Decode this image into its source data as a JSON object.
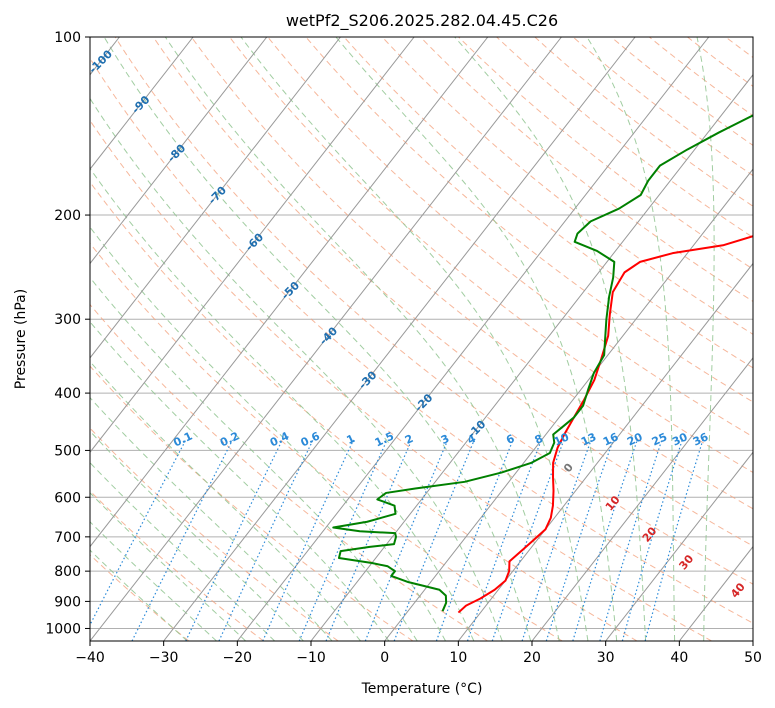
{
  "chart_data": {
    "type": "line",
    "title": "wetPf2_S206.2025.282.04.45.C26",
    "xlabel": "Temperature (°C)",
    "ylabel": "Pressure (hPa)",
    "xlim": [
      -40,
      50
    ],
    "ylim": [
      1050,
      100
    ],
    "y_scale": "log",
    "x_ticks": [
      -40,
      -30,
      -20,
      -10,
      0,
      10,
      20,
      30,
      40,
      50
    ],
    "y_ticks": [
      100,
      200,
      300,
      400,
      500,
      600,
      700,
      800,
      900,
      1000
    ],
    "grid": true,
    "series": [
      {
        "color": "#ff0000",
        "points": [
          [
            7.0,
            940
          ],
          [
            7.3,
            915
          ],
          [
            8.5,
            890
          ],
          [
            9.5,
            860
          ],
          [
            10.0,
            830
          ],
          [
            9.5,
            800
          ],
          [
            8.5,
            770
          ],
          [
            9.0,
            740
          ],
          [
            9.5,
            710
          ],
          [
            10.0,
            680
          ],
          [
            9.5,
            650
          ],
          [
            8.5,
            620
          ],
          [
            7.0,
            585
          ],
          [
            5.5,
            555
          ],
          [
            4.0,
            525
          ],
          [
            3.0,
            495
          ],
          [
            2.5,
            470
          ],
          [
            2.0,
            440
          ],
          [
            1.5,
            410
          ],
          [
            0.8,
            380
          ],
          [
            -0.5,
            350
          ],
          [
            -2.0,
            320
          ],
          [
            -4.0,
            295
          ],
          [
            -6.0,
            270
          ],
          [
            -6.5,
            250
          ],
          [
            -5.5,
            240
          ],
          [
            -2.0,
            232
          ],
          [
            4.0,
            225
          ],
          [
            8.0,
            215
          ],
          [
            11.0,
            200
          ],
          [
            15.0,
            185
          ],
          [
            19.0,
            170
          ],
          [
            22.0,
            155
          ],
          [
            24.0,
            145
          ],
          [
            26.0,
            135
          ],
          [
            28.0,
            125
          ],
          [
            30.0,
            113
          ],
          [
            32.0,
            105
          ],
          [
            33.0,
            100
          ]
        ]
      },
      {
        "color": "#008000",
        "points": [
          [
            4.7,
            935
          ],
          [
            4.3,
            905
          ],
          [
            3.5,
            880
          ],
          [
            2.0,
            860
          ],
          [
            -3.0,
            835
          ],
          [
            -6.0,
            815
          ],
          [
            -6.0,
            800
          ],
          [
            -7.5,
            785
          ],
          [
            -10.0,
            775
          ],
          [
            -15.0,
            760
          ],
          [
            -15.5,
            740
          ],
          [
            -12.0,
            728
          ],
          [
            -9.0,
            720
          ],
          [
            -9.5,
            700
          ],
          [
            -10.0,
            690
          ],
          [
            -15.0,
            685
          ],
          [
            -19.0,
            675
          ],
          [
            -15.0,
            660
          ],
          [
            -12.0,
            640
          ],
          [
            -13.0,
            620
          ],
          [
            -16.0,
            605
          ],
          [
            -15.5,
            590
          ],
          [
            -12.0,
            580
          ],
          [
            -6.0,
            565
          ],
          [
            -2.0,
            545
          ],
          [
            1.0,
            525
          ],
          [
            2.5,
            505
          ],
          [
            2.0,
            485
          ],
          [
            1.0,
            470
          ],
          [
            1.5,
            455
          ],
          [
            2.0,
            440
          ],
          [
            2.0,
            420
          ],
          [
            1.0,
            395
          ],
          [
            0.0,
            370
          ],
          [
            -0.5,
            345
          ],
          [
            -2.0,
            325
          ],
          [
            -4.0,
            300
          ],
          [
            -6.0,
            275
          ],
          [
            -7.5,
            255
          ],
          [
            -9.0,
            240
          ],
          [
            -12.5,
            230
          ],
          [
            -16.5,
            222
          ],
          [
            -17.0,
            215
          ],
          [
            -16.5,
            205
          ],
          [
            -14.0,
            195
          ],
          [
            -12.5,
            185
          ],
          [
            -13.0,
            175
          ],
          [
            -13.0,
            165
          ],
          [
            -11.0,
            155
          ],
          [
            -8.5,
            145
          ],
          [
            -5.5,
            135
          ],
          [
            -4.5,
            125
          ],
          [
            -3.0,
            115
          ],
          [
            -2.0,
            106
          ],
          [
            -1.0,
            100
          ]
        ]
      }
    ],
    "isotherm_labels": [
      "-100",
      "-90",
      "-80",
      "-70",
      "-60",
      "-50",
      "-40",
      "-30",
      "-20",
      "-10"
    ],
    "mixing_ratio_labels": [
      "0.1",
      "0.2",
      "0.4",
      "0.6",
      "1",
      "1.5",
      "2",
      "3",
      "4",
      "6",
      "8",
      "10",
      "13",
      "16",
      "20",
      "25",
      "30",
      "36"
    ],
    "moist_adiabat_labels": [
      "0",
      "10",
      "20",
      "30",
      "40"
    ],
    "colors": {
      "isotherm": "#999999",
      "isotherm_label": "#1f6fb0",
      "dry_adiabat": "#f4a582",
      "moist_adiabat": "#90c490",
      "mixing_ratio": "#2b8ad8",
      "moist_label_zero": "#777777",
      "moist_label": "#d62728",
      "hgrid": "#b0b0b0",
      "cold_curve": "#d2b48c"
    }
  }
}
